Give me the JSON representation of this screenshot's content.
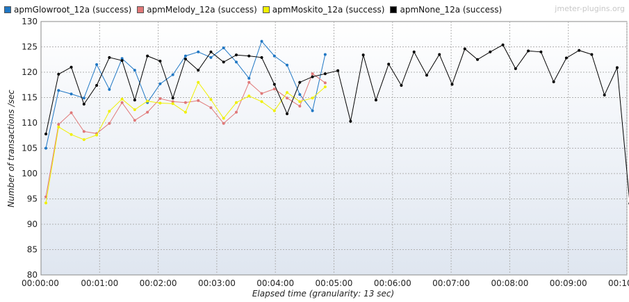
{
  "watermark": "jmeter-plugins.org",
  "chart_data": {
    "type": "line",
    "xlabel": "Elapsed time (granularity: 13 sec)",
    "ylabel": "Number of transactions /sec",
    "xlim": [
      0,
      600
    ],
    "ylim": [
      80,
      130
    ],
    "x_ticks": [
      0,
      60,
      120,
      180,
      240,
      300,
      360,
      420,
      480,
      540,
      600
    ],
    "x_tick_labels": [
      "00:00:00",
      "00:01:00",
      "00:02:00",
      "00:03:00",
      "00:04:00",
      "00:05:00",
      "00:06:00",
      "00:07:00",
      "00:08:00",
      "00:09:00",
      "00:10:00"
    ],
    "y_ticks": [
      80,
      85,
      90,
      95,
      100,
      105,
      110,
      115,
      120,
      125,
      130
    ],
    "grid": true,
    "legend_position": "top-left",
    "series": [
      {
        "name": "apmGlowroot_12a (success)",
        "color": "#1f77c4",
        "x": [
          5,
          18,
          31,
          44,
          57,
          70,
          83,
          96,
          109,
          122,
          135,
          148,
          161,
          174,
          187,
          200,
          213,
          226,
          239,
          252,
          265,
          278,
          291
        ],
        "y": [
          105.0,
          116.4,
          115.7,
          114.9,
          121.5,
          116.6,
          122.7,
          120.4,
          114.0,
          117.7,
          119.5,
          123.2,
          124.0,
          122.9,
          124.8,
          122.0,
          118.8,
          126.1,
          123.2,
          121.4,
          115.6,
          112.4,
          123.5
        ]
      },
      {
        "name": "apmMelody_12a (success)",
        "color": "#e07878",
        "x": [
          5,
          18,
          31,
          44,
          57,
          70,
          83,
          96,
          109,
          122,
          135,
          148,
          161,
          174,
          187,
          200,
          213,
          226,
          239,
          252,
          265,
          278,
          291
        ],
        "y": [
          95.4,
          109.7,
          112.0,
          108.3,
          107.9,
          109.9,
          114.0,
          110.5,
          112.1,
          114.8,
          114.2,
          114.0,
          114.4,
          113.0,
          109.9,
          112.1,
          118.0,
          115.8,
          116.7,
          114.9,
          113.3,
          119.7,
          117.9
        ]
      },
      {
        "name": "apmMoskito_12a (success)",
        "color": "#f0f000",
        "x": [
          5,
          18,
          31,
          44,
          57,
          70,
          83,
          96,
          109,
          122,
          135,
          148,
          161,
          174,
          187,
          200,
          213,
          226,
          239,
          252,
          265,
          278,
          291
        ],
        "y": [
          94.2,
          109.2,
          107.7,
          106.7,
          107.6,
          112.3,
          114.7,
          112.6,
          114.3,
          113.9,
          113.8,
          112.1,
          118.0,
          114.6,
          110.9,
          114.0,
          115.3,
          114.2,
          112.4,
          116.0,
          114.2,
          114.9,
          117.1
        ]
      },
      {
        "name": "apmNone_12a (success)",
        "color": "#000000",
        "x": [
          5,
          18,
          31,
          44,
          57,
          70,
          83,
          96,
          109,
          122,
          135,
          148,
          161,
          174,
          187,
          200,
          213,
          226,
          239,
          252,
          265,
          278,
          291,
          304,
          317,
          330,
          343,
          356,
          369,
          382,
          395,
          408,
          421,
          434,
          447,
          460,
          473,
          486,
          499,
          512,
          525,
          538,
          551,
          564,
          577,
          590,
          603
        ],
        "y": [
          107.8,
          119.6,
          121.0,
          113.7,
          117.4,
          122.9,
          122.3,
          114.5,
          123.2,
          122.2,
          114.9,
          122.6,
          120.4,
          124.0,
          122.0,
          123.4,
          123.2,
          122.9,
          117.6,
          111.8,
          118.0,
          119.1,
          119.7,
          120.3,
          110.3,
          123.4,
          114.5,
          121.6,
          117.4,
          124.0,
          119.4,
          123.5,
          117.6,
          124.6,
          122.5,
          124.0,
          125.4,
          120.7,
          124.2,
          124.0,
          118.1,
          122.8,
          124.3,
          123.5,
          115.5,
          120.9,
          94.1
        ]
      }
    ]
  }
}
